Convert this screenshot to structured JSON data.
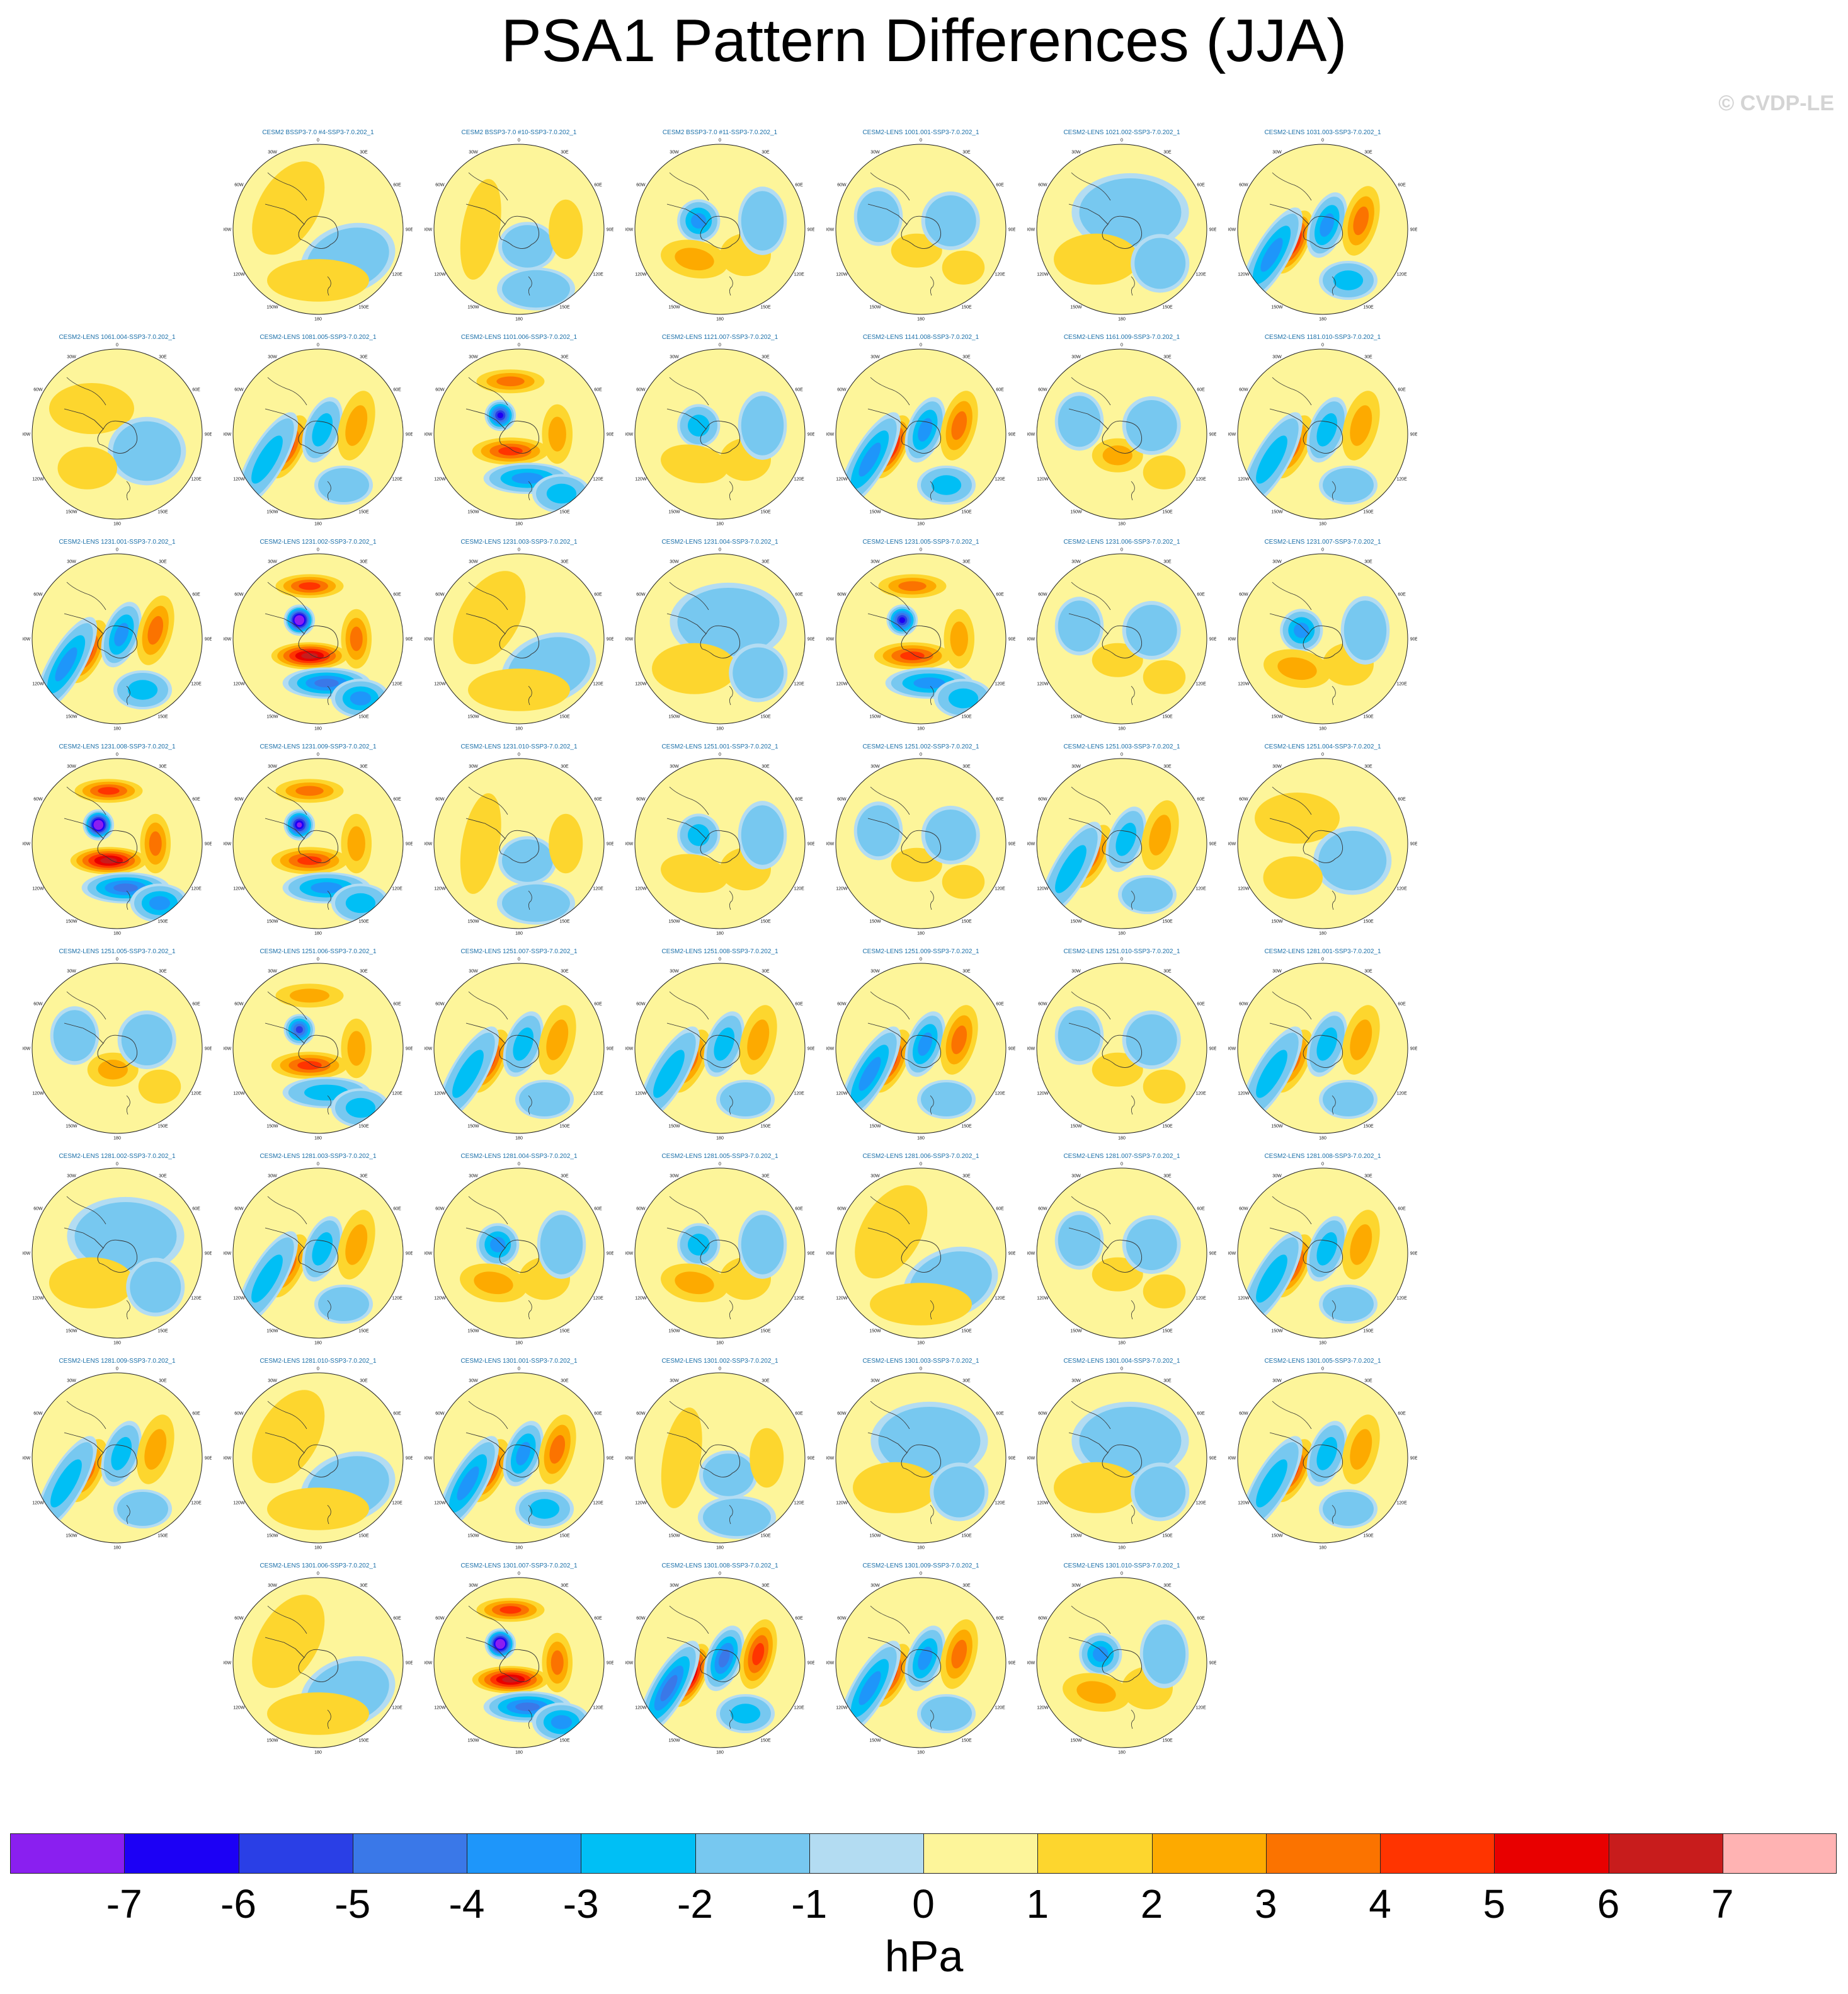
{
  "title": "PSA1 Pattern Differences (JJA)",
  "watermark": "© CVDP-LE",
  "units": "hPa",
  "colorbar": {
    "labels": [
      "-7",
      "-6",
      "-5",
      "-4",
      "-3",
      "-2",
      "-1",
      "0",
      "1",
      "2",
      "3",
      "4",
      "5",
      "6",
      "7"
    ],
    "colors": [
      "#8a1ff0",
      "#1c00f5",
      "#2a3fe6",
      "#3a78e8",
      "#1e96fa",
      "#00bff5",
      "#77c8f0",
      "#b3dcf2",
      "#fdf59a",
      "#fdd62e",
      "#fdaa00",
      "#fb7300",
      "#ff3400",
      "#e80000",
      "#c81c1c",
      "#ffb3b3"
    ]
  },
  "tick_labels": {
    "top": "0",
    "bottom": "180",
    "upper_left": "30W",
    "upper_right": "30E",
    "left_upper": "60W",
    "right_upper": "60E",
    "left": "90W",
    "right": "90E",
    "left_lower": "120W",
    "right_lower": "120E",
    "lower_left": "150W",
    "lower_right": "150E"
  },
  "panels": [
    {
      "row": 0,
      "col": 1,
      "title": "CESM2 BSSP3-7.0 #4-SSP3-7.0.202_1",
      "pattern": 0,
      "strength": 0.5
    },
    {
      "row": 0,
      "col": 2,
      "title": "CESM2 BSSP3-7.0 #10-SSP3-7.0.202_1",
      "pattern": 1,
      "strength": 0.6
    },
    {
      "row": 0,
      "col": 3,
      "title": "CESM2 BSSP3-7.0 #11-SSP3-7.0.202_1",
      "pattern": 2,
      "strength": 1.0
    },
    {
      "row": 0,
      "col": 4,
      "title": "CESM2-LENS 1001.001-SSP3-7.0.202_1",
      "pattern": 3,
      "strength": 0.7
    },
    {
      "row": 0,
      "col": 5,
      "title": "CESM2-LENS 1021.002-SSP3-7.0.202_1",
      "pattern": 4,
      "strength": 0.4
    },
    {
      "row": 0,
      "col": 6,
      "title": "CESM2-LENS 1031.003-SSP3-7.0.202_1",
      "pattern": 5,
      "strength": 1.5
    },
    {
      "row": 1,
      "col": 0,
      "title": "CESM2-LENS 1061.004-SSP3-7.0.202_1",
      "pattern": 6,
      "strength": 0.4
    },
    {
      "row": 1,
      "col": 1,
      "title": "CESM2-LENS 1081.005-SSP3-7.0.202_1",
      "pattern": 5,
      "strength": 1.1
    },
    {
      "row": 1,
      "col": 2,
      "title": "CESM2-LENS 1101.006-SSP3-7.0.202_1",
      "pattern": 7,
      "strength": 1.3
    },
    {
      "row": 1,
      "col": 3,
      "title": "CESM2-LENS 1121.007-SSP3-7.0.202_1",
      "pattern": 2,
      "strength": 0.8
    },
    {
      "row": 1,
      "col": 4,
      "title": "CESM2-LENS 1141.008-SSP3-7.0.202_1",
      "pattern": 5,
      "strength": 1.6
    },
    {
      "row": 1,
      "col": 5,
      "title": "CESM2-LENS 1161.009-SSP3-7.0.202_1",
      "pattern": 3,
      "strength": 0.8
    },
    {
      "row": 1,
      "col": 6,
      "title": "CESM2-LENS 1181.010-SSP3-7.0.202_1",
      "pattern": 5,
      "strength": 1.0
    },
    {
      "row": 2,
      "col": 0,
      "title": "CESM2-LENS 1231.001-SSP3-7.0.202_1",
      "pattern": 5,
      "strength": 1.4
    },
    {
      "row": 2,
      "col": 1,
      "title": "CESM2-LENS 1231.002-SSP3-7.0.202_1",
      "pattern": 7,
      "strength": 1.9
    },
    {
      "row": 2,
      "col": 2,
      "title": "CESM2-LENS 1231.003-SSP3-7.0.202_1",
      "pattern": 0,
      "strength": 0.4
    },
    {
      "row": 2,
      "col": 3,
      "title": "CESM2-LENS 1231.004-SSP3-7.0.202_1",
      "pattern": 4,
      "strength": 0.5
    },
    {
      "row": 2,
      "col": 4,
      "title": "CESM2-LENS 1231.005-SSP3-7.0.202_1",
      "pattern": 7,
      "strength": 1.2
    },
    {
      "row": 2,
      "col": 5,
      "title": "CESM2-LENS 1231.006-SSP3-7.0.202_1",
      "pattern": 3,
      "strength": 0.6
    },
    {
      "row": 2,
      "col": 6,
      "title": "CESM2-LENS 1231.007-SSP3-7.0.202_1",
      "pattern": 2,
      "strength": 1.0
    },
    {
      "row": 3,
      "col": 0,
      "title": "CESM2-LENS 1231.008-SSP3-7.0.202_1",
      "pattern": 7,
      "strength": 1.8
    },
    {
      "row": 3,
      "col": 1,
      "title": "CESM2-LENS 1231.009-SSP3-7.0.202_1",
      "pattern": 7,
      "strength": 1.4
    },
    {
      "row": 3,
      "col": 2,
      "title": "CESM2-LENS 1231.010-SSP3-7.0.202_1",
      "pattern": 1,
      "strength": 0.7
    },
    {
      "row": 3,
      "col": 3,
      "title": "CESM2-LENS 1251.001-SSP3-7.0.202_1",
      "pattern": 2,
      "strength": 0.7
    },
    {
      "row": 3,
      "col": 4,
      "title": "CESM2-LENS 1251.002-SSP3-7.0.202_1",
      "pattern": 3,
      "strength": 0.6
    },
    {
      "row": 3,
      "col": 5,
      "title": "CESM2-LENS 1251.003-SSP3-7.0.202_1",
      "pattern": 5,
      "strength": 0.9
    },
    {
      "row": 3,
      "col": 6,
      "title": "CESM2-LENS 1251.004-SSP3-7.0.202_1",
      "pattern": 6,
      "strength": 1.0
    },
    {
      "row": 4,
      "col": 0,
      "title": "CESM2-LENS 1251.005-SSP3-7.0.202_1",
      "pattern": 3,
      "strength": 0.8
    },
    {
      "row": 4,
      "col": 1,
      "title": "CESM2-LENS 1251.006-SSP3-7.0.202_1",
      "pattern": 7,
      "strength": 1.1
    },
    {
      "row": 4,
      "col": 2,
      "title": "CESM2-LENS 1251.007-SSP3-7.0.202_1",
      "pattern": 5,
      "strength": 1.1
    },
    {
      "row": 4,
      "col": 3,
      "title": "CESM2-LENS 1251.008-SSP3-7.0.202_1",
      "pattern": 5,
      "strength": 0.9
    },
    {
      "row": 4,
      "col": 4,
      "title": "CESM2-LENS 1251.009-SSP3-7.0.202_1",
      "pattern": 5,
      "strength": 1.2
    },
    {
      "row": 4,
      "col": 5,
      "title": "CESM2-LENS 1251.010-SSP3-7.0.202_1",
      "pattern": 3,
      "strength": 0.6
    },
    {
      "row": 4,
      "col": 6,
      "title": "CESM2-LENS 1281.001-SSP3-7.0.202_1",
      "pattern": 5,
      "strength": 1.0
    },
    {
      "row": 5,
      "col": 0,
      "title": "CESM2-LENS 1281.002-SSP3-7.0.202_1",
      "pattern": 4,
      "strength": 0.4
    },
    {
      "row": 5,
      "col": 1,
      "title": "CESM2-LENS 1281.003-SSP3-7.0.202_1",
      "pattern": 5,
      "strength": 0.8
    },
    {
      "row": 5,
      "col": 2,
      "title": "CESM2-LENS 1281.004-SSP3-7.0.202_1",
      "pattern": 2,
      "strength": 1.3
    },
    {
      "row": 5,
      "col": 3,
      "title": "CESM2-LENS 1281.005-SSP3-7.0.202_1",
      "pattern": 2,
      "strength": 0.9
    },
    {
      "row": 5,
      "col": 4,
      "title": "CESM2-LENS 1281.006-SSP3-7.0.202_1",
      "pattern": 0,
      "strength": 0.4
    },
    {
      "row": 5,
      "col": 5,
      "title": "CESM2-LENS 1281.007-SSP3-7.0.202_1",
      "pattern": 3,
      "strength": 0.7
    },
    {
      "row": 5,
      "col": 6,
      "title": "CESM2-LENS 1281.008-SSP3-7.0.202_1",
      "pattern": 5,
      "strength": 1.1
    },
    {
      "row": 6,
      "col": 0,
      "title": "CESM2-LENS 1281.009-SSP3-7.0.202_1",
      "pattern": 5,
      "strength": 0.8
    },
    {
      "row": 6,
      "col": 1,
      "title": "CESM2-LENS 1281.010-SSP3-7.0.202_1",
      "pattern": 0,
      "strength": 0.4
    },
    {
      "row": 6,
      "col": 2,
      "title": "CESM2-LENS 1301.001-SSP3-7.0.202_1",
      "pattern": 5,
      "strength": 1.3
    },
    {
      "row": 6,
      "col": 3,
      "title": "CESM2-LENS 1301.002-SSP3-7.0.202_1",
      "pattern": 1,
      "strength": 0.6
    },
    {
      "row": 6,
      "col": 4,
      "title": "CESM2-LENS 1301.003-SSP3-7.0.202_1",
      "pattern": 4,
      "strength": 0.5
    },
    {
      "row": 6,
      "col": 5,
      "title": "CESM2-LENS 1301.004-SSP3-7.0.202_1",
      "pattern": 4,
      "strength": 0.4
    },
    {
      "row": 6,
      "col": 6,
      "title": "CESM2-LENS 1301.005-SSP3-7.0.202_1",
      "pattern": 5,
      "strength": 1.1
    },
    {
      "row": 7,
      "col": 1,
      "title": "CESM2-LENS 1301.006-SSP3-7.0.202_1",
      "pattern": 0,
      "strength": 0.4
    },
    {
      "row": 7,
      "col": 2,
      "title": "CESM2-LENS 1301.007-SSP3-7.0.202_1",
      "pattern": 7,
      "strength": 2.0
    },
    {
      "row": 7,
      "col": 3,
      "title": "CESM2-LENS 1301.008-SSP3-7.0.202_1",
      "pattern": 5,
      "strength": 1.8
    },
    {
      "row": 7,
      "col": 4,
      "title": "CESM2-LENS 1301.009-SSP3-7.0.202_1",
      "pattern": 5,
      "strength": 1.2
    },
    {
      "row": 7,
      "col": 5,
      "title": "CESM2-LENS 1301.010-SSP3-7.0.202_1",
      "pattern": 2,
      "strength": 1.0
    }
  ]
}
